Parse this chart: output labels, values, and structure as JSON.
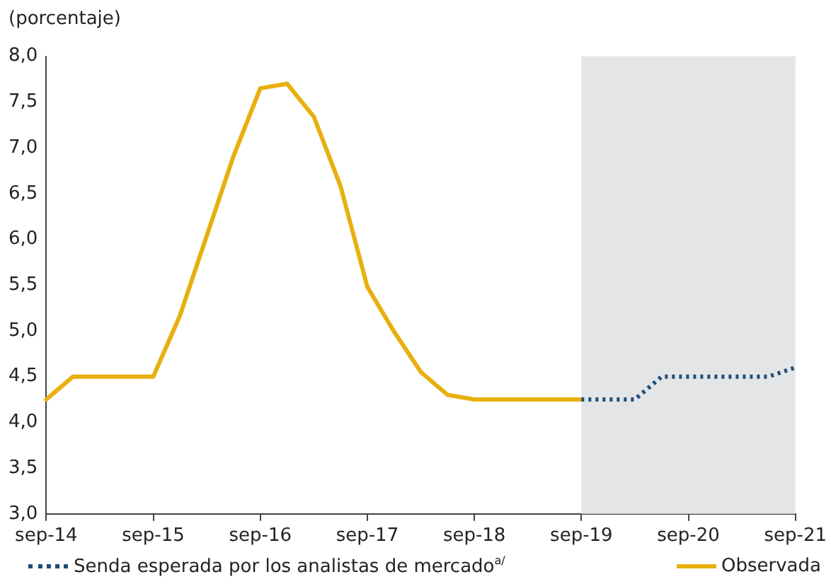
{
  "chart_data": {
    "type": "line",
    "ylabel": "(porcentaje)",
    "categories": [
      "sep-14",
      null,
      null,
      null,
      "sep-15",
      null,
      null,
      null,
      "sep-16",
      null,
      null,
      null,
      "sep-17",
      null,
      null,
      null,
      "sep-18",
      null,
      null,
      null,
      "sep-19",
      null,
      null,
      null,
      "sep-20",
      null,
      null,
      null,
      "sep-21"
    ],
    "series": [
      {
        "name": "Senda esperada por los analistas de mercado$^{a/}$",
        "color": "#1f4e79",
        "line_style": "dotted",
        "values": [
          null,
          null,
          null,
          null,
          null,
          null,
          null,
          null,
          null,
          null,
          null,
          null,
          null,
          null,
          null,
          null,
          null,
          null,
          null,
          null,
          4.25,
          4.25,
          4.25,
          4.5,
          4.5,
          4.5,
          4.5,
          4.5,
          4.6
        ]
      },
      {
        "name": "Observada",
        "color": "#e8b00f",
        "line_style": "solid",
        "values": [
          4.25,
          4.5,
          4.5,
          4.5,
          4.5,
          5.17,
          6.04,
          6.91,
          7.65,
          7.7,
          7.34,
          6.58,
          5.48,
          4.99,
          4.55,
          4.3,
          4.25,
          4.25,
          4.25,
          4.25,
          4.25,
          null,
          null,
          null,
          null,
          null,
          null,
          null,
          null
        ]
      }
    ],
    "ylim": [
      3,
      8
    ],
    "yticks": [
      {
        "value": 3,
        "label": "3,0"
      },
      {
        "value": 3.5,
        "label": "3,5"
      },
      {
        "value": 4,
        "label": "4,0"
      },
      {
        "value": 4.5,
        "label": "4,5"
      },
      {
        "value": 5,
        "label": "5,0"
      },
      {
        "value": 5.5,
        "label": "5,5"
      },
      {
        "value": 6,
        "label": "6,0"
      },
      {
        "value": 6.5,
        "label": "6,5"
      },
      {
        "value": 7,
        "label": "7,0"
      },
      {
        "value": 7.5,
        "label": "7,5"
      },
      {
        "value": 8,
        "label": "8,0"
      }
    ],
    "bands": [
      {
        "axis": "x",
        "from": "sep-19",
        "to": "sep-21",
        "color": "#e4e5e7"
      }
    ],
    "grid": false,
    "legend": "bottom",
    "marker": "none"
  }
}
